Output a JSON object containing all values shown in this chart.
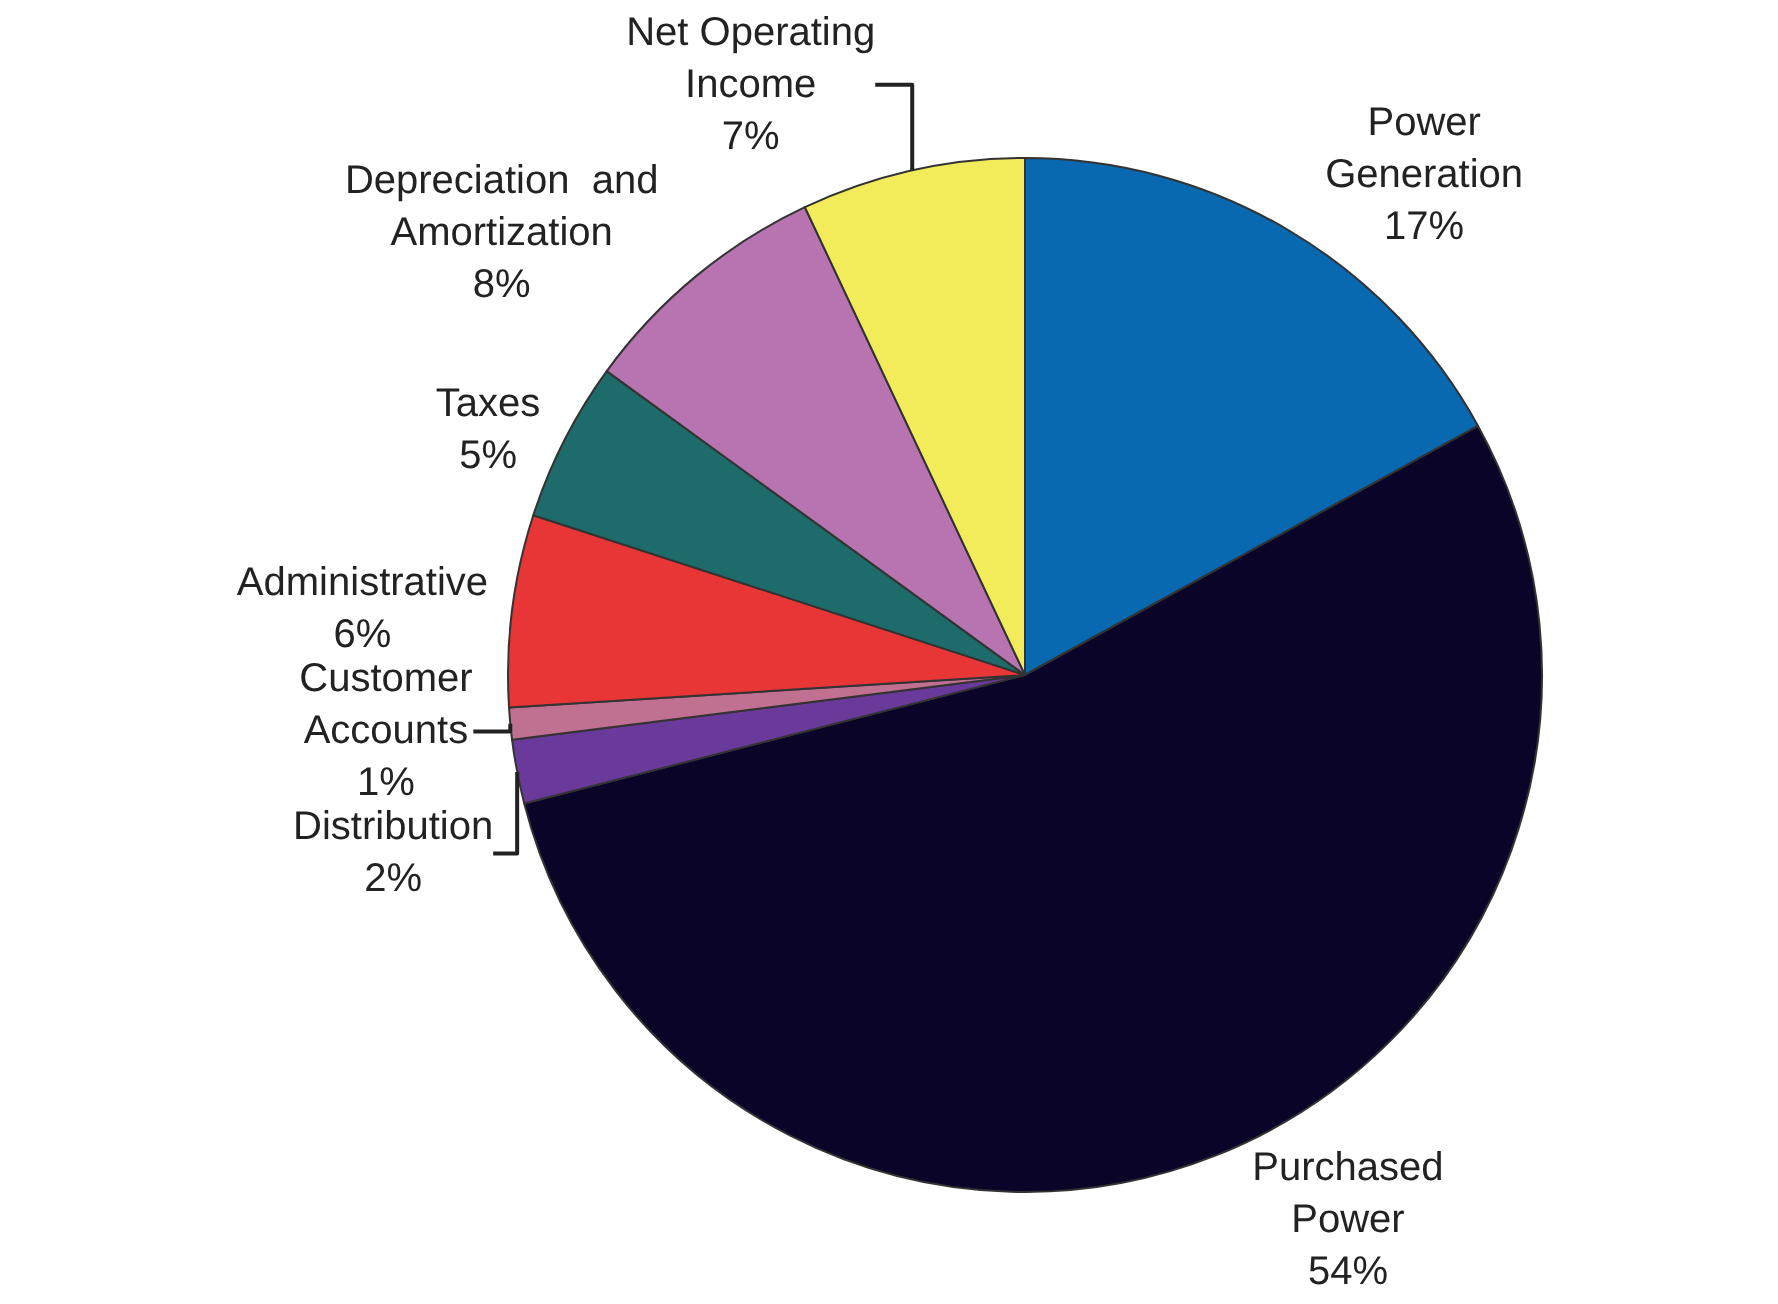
{
  "chart_data": {
    "type": "pie",
    "categories": [
      "Power\nGeneration",
      "Purchased\nPower",
      "Distribution",
      "Customer\nAccounts",
      "Administrative",
      "Taxes",
      "Depreciation  and\nAmortization",
      "Net Operating\nIncome"
    ],
    "values": [
      17,
      54,
      2,
      1,
      6,
      5,
      8,
      7
    ],
    "value_labels": [
      "17%",
      "54%",
      "2%",
      "1%",
      "6%",
      "5%",
      "8%",
      "7%"
    ],
    "colors": [
      "#0868b0",
      "#0a0528",
      "#6a3a9a",
      "#c07090",
      "#e83535",
      "#1e6b6b",
      "#b774b0",
      "#f2ec5a"
    ],
    "legend": false
  }
}
